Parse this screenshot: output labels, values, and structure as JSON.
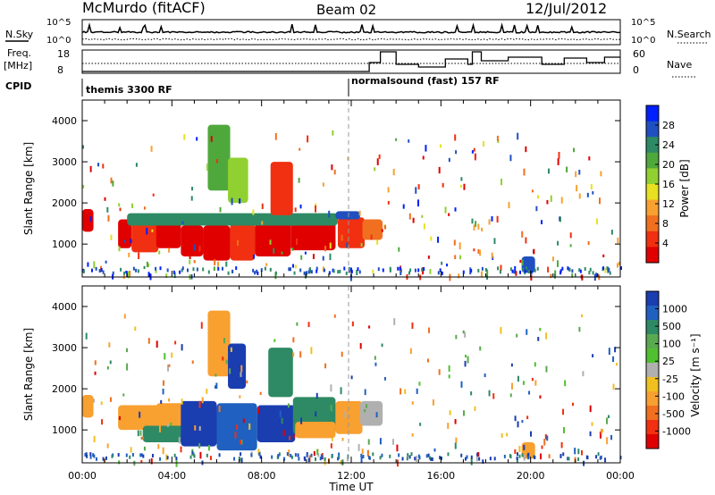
{
  "header": {
    "station": "McMurdo (fitACF)",
    "beam": "Beam 02",
    "date": "12/Jul/2012"
  },
  "nsky_panel": {
    "left_label": "N.Sky",
    "right_label": "N.Search",
    "left_ticks": [
      "10^5",
      "10^0"
    ],
    "right_ticks": [
      "10^5",
      "10^0"
    ]
  },
  "freq_panel": {
    "left_label": "Freq.",
    "left_unit": "[MHz]",
    "right_label": "Nave",
    "left_ticks": [
      "18",
      "8"
    ],
    "right_ticks": [
      "60",
      "0"
    ]
  },
  "cpid_panel": {
    "label": "CPID",
    "segments": [
      {
        "start_hour": 0,
        "text": "themis 3300 RF"
      },
      {
        "start_hour": 11.97,
        "text": "normalsound (fast) 157 RF"
      }
    ]
  },
  "chart_data": [
    {
      "type": "heatmap",
      "name": "power",
      "xlabel": "",
      "ylabel": "Slant Range [km]",
      "xlim": [
        0,
        24
      ],
      "ylim": [
        200,
        4500
      ],
      "yticks": [
        1000,
        2000,
        3000,
        4000
      ],
      "colorbar": {
        "label": "Power [dB]",
        "ticks": [
          4,
          8,
          12,
          16,
          20,
          24,
          28
        ],
        "colors": [
          "#0020ff",
          "#2050c0",
          "#2e8a64",
          "#4fa83c",
          "#90d030",
          "#e8e020",
          "#f8a030",
          "#f07020",
          "#f03010",
          "#e00000"
        ]
      },
      "blobs": [
        {
          "x0": 0.0,
          "x1": 0.5,
          "y0": 1300,
          "y1": 1850,
          "c": "#e00000"
        },
        {
          "x0": 1.6,
          "x1": 2.2,
          "y0": 900,
          "y1": 1600,
          "c": "#e00000"
        },
        {
          "x0": 2.2,
          "x1": 3.4,
          "y0": 800,
          "y1": 1500,
          "c": "#f03010"
        },
        {
          "x0": 3.3,
          "x1": 4.4,
          "y0": 900,
          "y1": 1550,
          "c": "#e00000"
        },
        {
          "x0": 4.4,
          "x1": 5.4,
          "y0": 700,
          "y1": 1450,
          "c": "#e00000"
        },
        {
          "x0": 5.4,
          "x1": 6.6,
          "y0": 600,
          "y1": 1450,
          "c": "#e00000"
        },
        {
          "x0": 6.6,
          "x1": 7.7,
          "y0": 600,
          "y1": 1500,
          "c": "#f03010"
        },
        {
          "x0": 7.7,
          "x1": 9.3,
          "y0": 700,
          "y1": 1500,
          "c": "#e00000"
        },
        {
          "x0": 9.3,
          "x1": 11.3,
          "y0": 850,
          "y1": 1700,
          "c": "#e00000"
        },
        {
          "x0": 11.4,
          "x1": 12.6,
          "y0": 900,
          "y1": 1650,
          "c": "#f03010"
        },
        {
          "x0": 12.5,
          "x1": 13.4,
          "y0": 1100,
          "y1": 1600,
          "c": "#f07020"
        },
        {
          "x0": 2.0,
          "x1": 11.4,
          "y0": 1450,
          "y1": 1750,
          "c": "#2e8a64"
        },
        {
          "x0": 11.3,
          "x1": 12.4,
          "y0": 1600,
          "y1": 1800,
          "c": "#2050c0"
        },
        {
          "x0": 8.4,
          "x1": 9.4,
          "y0": 1700,
          "y1": 3000,
          "c": "#f03010"
        },
        {
          "x0": 5.6,
          "x1": 6.6,
          "y0": 2300,
          "y1": 3900,
          "c": "#4fa83c"
        },
        {
          "x0": 6.5,
          "x1": 7.4,
          "y0": 2000,
          "y1": 3100,
          "c": "#90d030"
        },
        {
          "x0": 19.6,
          "x1": 20.2,
          "y0": 300,
          "y1": 700,
          "c": "#2050c0"
        }
      ]
    },
    {
      "type": "heatmap",
      "name": "velocity",
      "xlabel": "Time UT",
      "ylabel": "Slant Range [km]",
      "xlim": [
        0,
        24
      ],
      "ylim": [
        200,
        4500
      ],
      "yticks": [
        1000,
        2000,
        3000,
        4000
      ],
      "xticks": [
        "00:00",
        "04:00",
        "08:00",
        "12:00",
        "16:00",
        "20:00",
        "00:00"
      ],
      "colorbar": {
        "label": "Velocity [m s⁻¹]",
        "ticks": [
          "1000",
          "500",
          "100",
          "25",
          "-25",
          "-100",
          "-500",
          "-1000"
        ],
        "colors": [
          "#1a3db0",
          "#2060c0",
          "#2e8a64",
          "#5aa850",
          "#50c030",
          "#b0b0b0",
          "#f0c020",
          "#f8a030",
          "#f07020",
          "#f03010",
          "#e00000"
        ]
      },
      "blobs": [
        {
          "x0": 0.0,
          "x1": 0.5,
          "y0": 1300,
          "y1": 1850,
          "c": "#f8a030"
        },
        {
          "x0": 1.6,
          "x1": 3.5,
          "y0": 1000,
          "y1": 1600,
          "c": "#f8a030"
        },
        {
          "x0": 3.3,
          "x1": 4.5,
          "y0": 1000,
          "y1": 1650,
          "c": "#f8a030"
        },
        {
          "x0": 2.7,
          "x1": 4.6,
          "y0": 700,
          "y1": 1100,
          "c": "#2e8a64"
        },
        {
          "x0": 4.4,
          "x1": 6.0,
          "y0": 600,
          "y1": 1700,
          "c": "#1a3db0"
        },
        {
          "x0": 6.0,
          "x1": 7.8,
          "y0": 500,
          "y1": 1650,
          "c": "#2060c0"
        },
        {
          "x0": 7.8,
          "x1": 9.5,
          "y0": 700,
          "y1": 1600,
          "c": "#1a3db0"
        },
        {
          "x0": 9.4,
          "x1": 11.3,
          "y0": 900,
          "y1": 1800,
          "c": "#2e8a64"
        },
        {
          "x0": 9.5,
          "x1": 11.3,
          "y0": 800,
          "y1": 1200,
          "c": "#f8a030"
        },
        {
          "x0": 11.3,
          "x1": 12.5,
          "y0": 900,
          "y1": 1700,
          "c": "#f8a030"
        },
        {
          "x0": 12.4,
          "x1": 13.4,
          "y0": 1100,
          "y1": 1700,
          "c": "#b0b0b0"
        },
        {
          "x0": 8.3,
          "x1": 9.4,
          "y0": 1800,
          "y1": 3000,
          "c": "#2e8a64"
        },
        {
          "x0": 5.6,
          "x1": 6.6,
          "y0": 2300,
          "y1": 3900,
          "c": "#f8a030"
        },
        {
          "x0": 6.5,
          "x1": 7.3,
          "y0": 2000,
          "y1": 3100,
          "c": "#1a3db0"
        },
        {
          "x0": 19.6,
          "x1": 20.2,
          "y0": 300,
          "y1": 700,
          "c": "#f8a030"
        }
      ]
    }
  ]
}
